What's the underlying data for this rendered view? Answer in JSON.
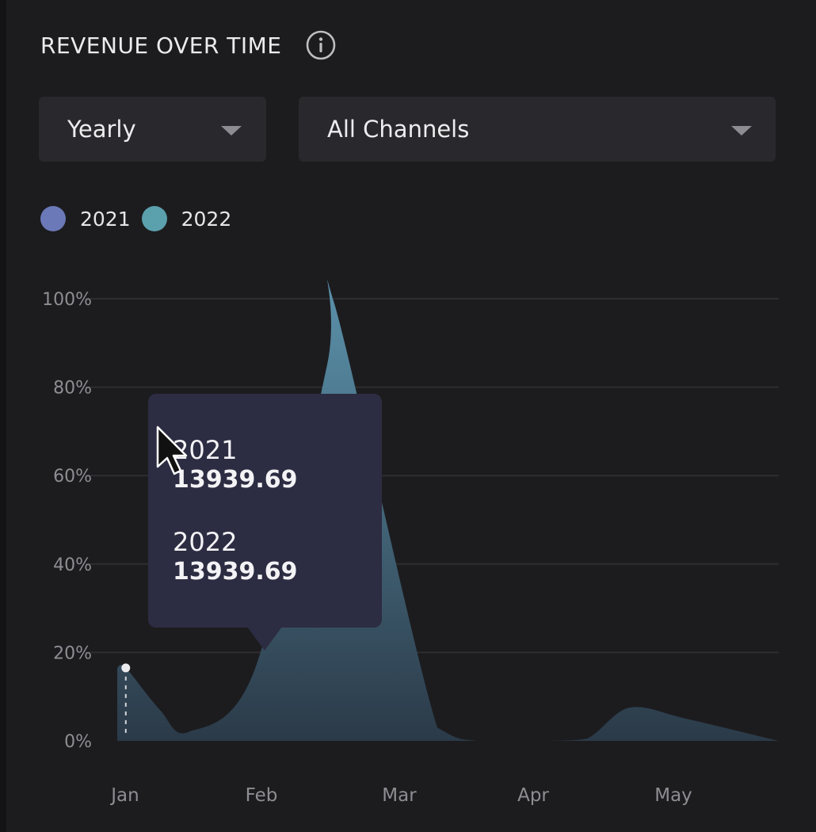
{
  "header": {
    "title": "REVENUE OVER TIME",
    "info_icon": "info-circle-icon"
  },
  "filters": {
    "period": {
      "value": "Yearly",
      "icon": "caret-down-icon"
    },
    "channel": {
      "value": "All Channels",
      "icon": "caret-down-icon"
    }
  },
  "legend": [
    {
      "label": "2021",
      "color": "#6b79b8"
    },
    {
      "label": "2022",
      "color": "#5ba0ad"
    }
  ],
  "tooltip": {
    "entries": [
      {
        "year": "2021",
        "value": "13939.69"
      },
      {
        "year": "2022",
        "value": "13939.69"
      }
    ]
  },
  "colors": {
    "background": "#1c1c1f",
    "area_top": "#5a8fa8",
    "area_bottom": "#2b3a48",
    "grid": "#2d2d32",
    "tooltip_bg": "#2c2c42"
  },
  "chart_data": {
    "type": "area",
    "title": "REVENUE OVER TIME",
    "categories": [
      "Jan",
      "Feb",
      "Mar",
      "Apr",
      "May"
    ],
    "y_tick_labels": [
      "0%",
      "20%",
      "40%",
      "60%",
      "80%",
      "100%"
    ],
    "ylim": [
      0,
      100
    ],
    "legend_position": "top-left",
    "grid": true,
    "series": [
      {
        "name": "2022",
        "x": [
          0.0,
          0.12,
          0.6,
          1.0,
          1.93,
          2.95,
          3.05,
          4.5,
          5.05,
          6.0,
          6.6,
          7.2,
          8.0,
          9.3
        ],
        "values": [
          16.5,
          16.5,
          7,
          2,
          16,
          85,
          99,
          3,
          0,
          0,
          0.5,
          7.5,
          5,
          0
        ]
      }
    ],
    "highlight": {
      "x": 0.12,
      "value": 16.5
    }
  }
}
